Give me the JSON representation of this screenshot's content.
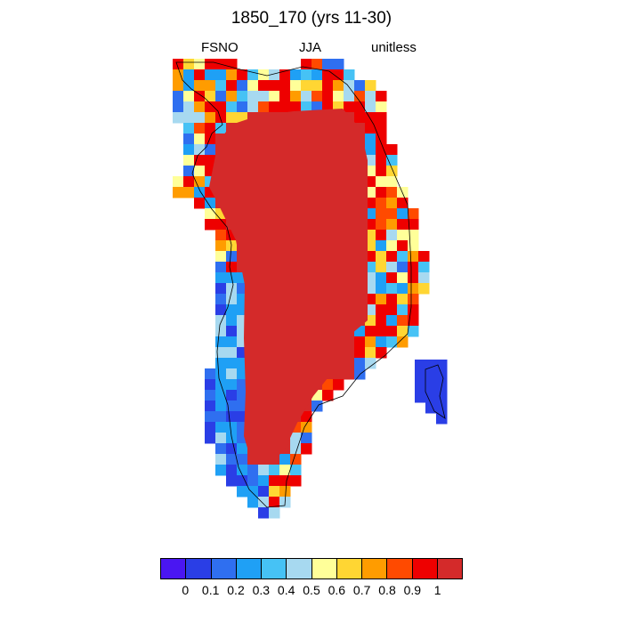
{
  "plot": {
    "title": "1850_170 (yrs 11-30)",
    "left_string": "FSNO",
    "center_string": "JJA",
    "right_string": "unitless"
  },
  "colorbar": {
    "colors": [
      "#4a16f2",
      "#2a3ee6",
      "#2f6ff0",
      "#1fa0f5",
      "#46c2f5",
      "#a7d9f0",
      "#ffff99",
      "#ffd633",
      "#ff9c00",
      "#ff4a00",
      "#ee0000",
      "#d42a2a"
    ],
    "labels": [
      "0",
      "0.1",
      "0.2",
      "0.3",
      "0.4",
      "0.5",
      "0.6",
      "0.7",
      "0.8",
      "0.9",
      "1"
    ]
  },
  "map_data": {
    "variable": "FSNO",
    "range": [
      0,
      1
    ],
    "interior_value": 1.0,
    "coastal_pattern": {
      "north_and_northwest": "0.4-1.0 mixed",
      "east_coast": "0.4-0.9 mixed",
      "southwest_coast": "0.1-0.3",
      "southeast_island": "0.1"
    }
  }
}
